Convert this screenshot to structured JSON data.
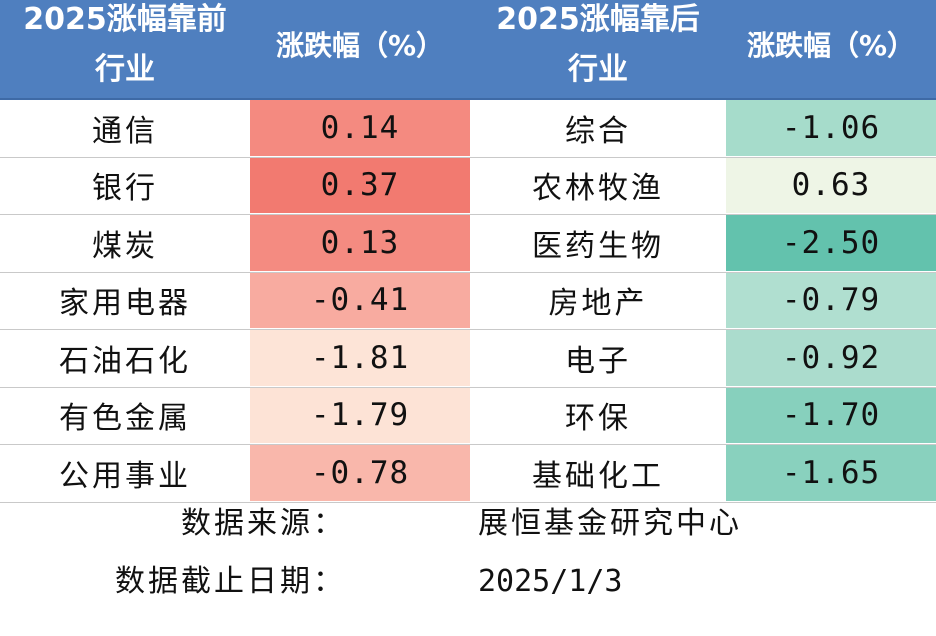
{
  "header": {
    "left_title_line1": "2025涨幅靠前",
    "left_title_line2": "行业",
    "left_change": "涨跌幅（%）",
    "right_title_line1": "2025涨幅靠后",
    "right_title_line2": "行业",
    "right_change": "涨跌幅（%）"
  },
  "rows": [
    {
      "left_industry": "通信",
      "left_value": "0.14",
      "left_color": "#f48a80",
      "right_industry": "综合",
      "right_value": "-1.06",
      "right_color": "#a6dccb"
    },
    {
      "left_industry": "银行",
      "left_value": "0.37",
      "left_color": "#f27a70",
      "right_industry": "农林牧渔",
      "right_value": "0.63",
      "right_color": "#eef5e6"
    },
    {
      "left_industry": "煤炭",
      "left_value": "0.13",
      "left_color": "#f48b81",
      "right_industry": "医药生物",
      "right_value": "-2.50",
      "right_color": "#63c2ad"
    },
    {
      "left_industry": "家用电器",
      "left_value": "-0.41",
      "left_color": "#f8aba0",
      "right_industry": "房地产",
      "right_value": "-0.79",
      "right_color": "#b0dfd0"
    },
    {
      "left_industry": "石油石化",
      "left_value": "-1.81",
      "left_color": "#fde4d7",
      "right_industry": "电子",
      "right_value": "-0.92",
      "right_color": "#abdccd"
    },
    {
      "left_industry": "有色金属",
      "left_value": "-1.79",
      "left_color": "#fde3d6",
      "right_industry": "环保",
      "right_value": "-1.70",
      "right_color": "#87d0bd"
    },
    {
      "left_industry": "公用事业",
      "left_value": "-0.78",
      "left_color": "#f9b7ab",
      "right_industry": "基础化工",
      "right_value": "-1.65",
      "right_color": "#89d1be"
    }
  ],
  "footer": {
    "source_label": "数据来源：",
    "source_value": "展恒基金研究中心",
    "date_label": "数据截止日期：",
    "date_value": "2025/1/3"
  }
}
